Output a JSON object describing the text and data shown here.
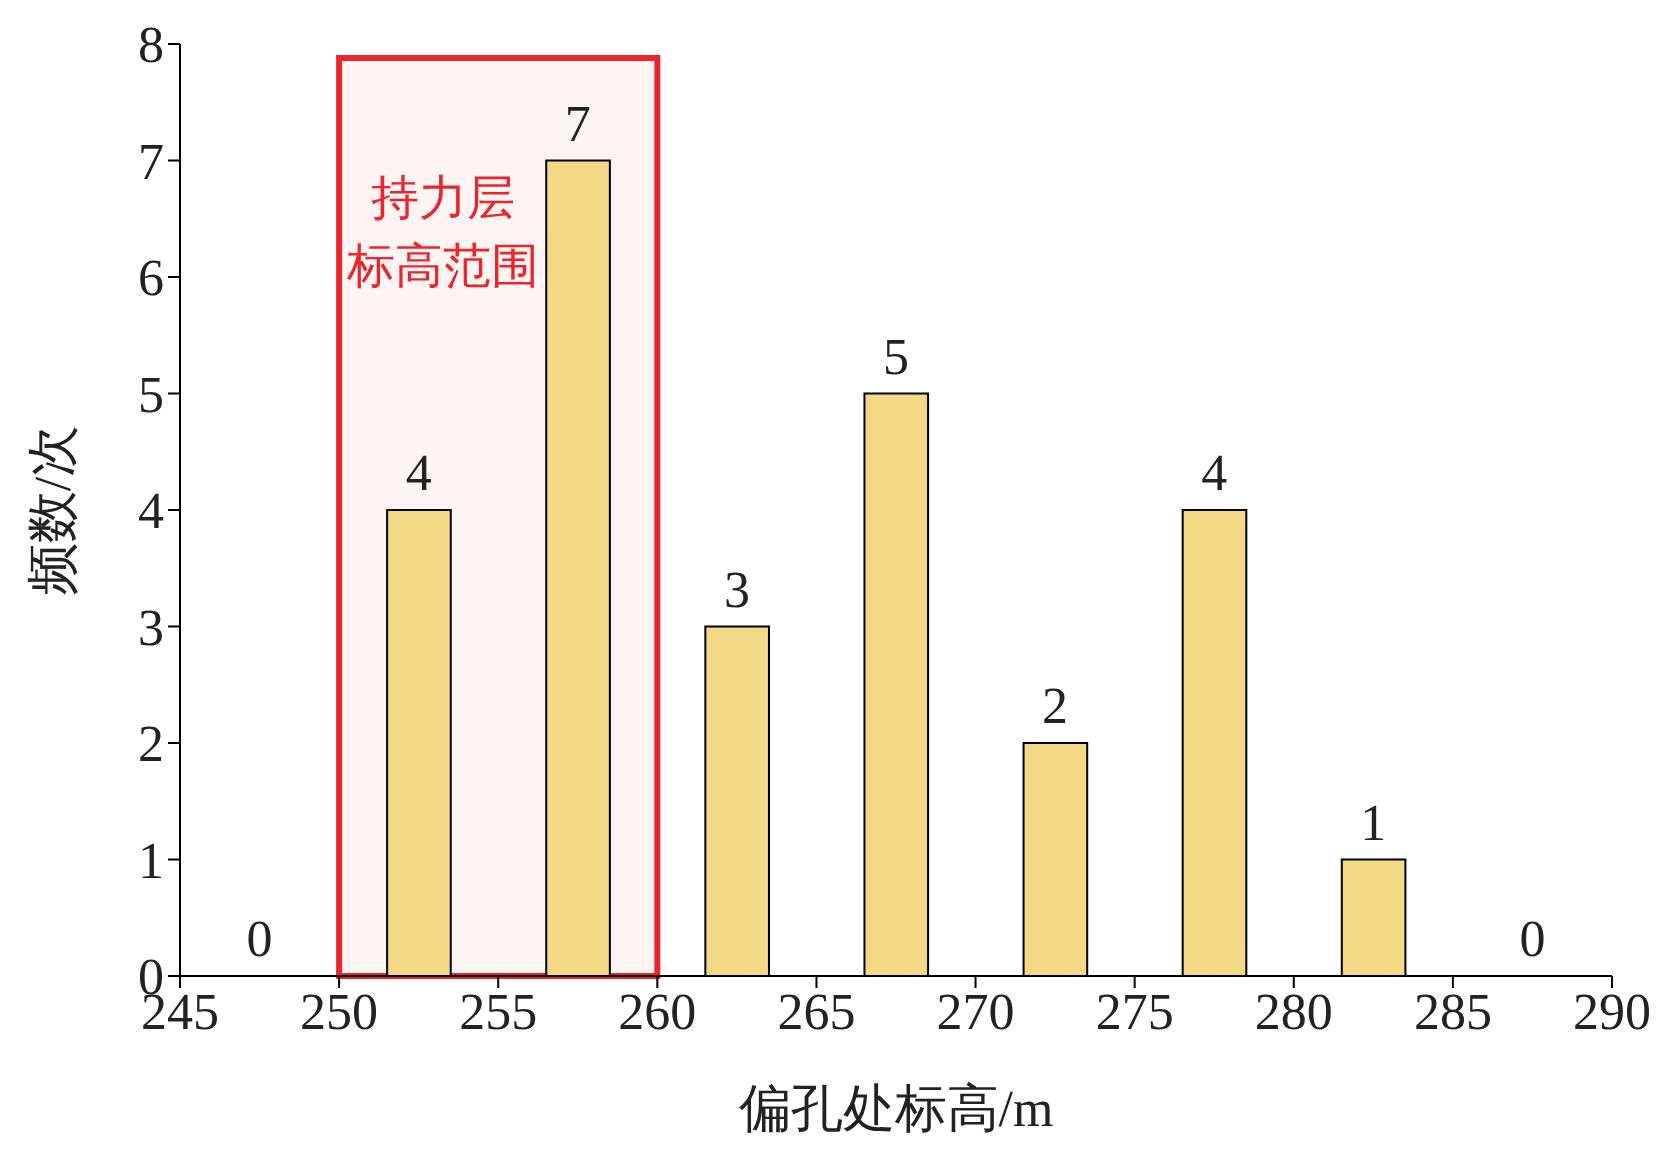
{
  "chart_data": {
    "type": "bar",
    "xlabel": "偏孔处标高/m",
    "ylabel": "频数/次",
    "x": [
      247.5,
      252.5,
      257.5,
      262.5,
      267.5,
      272.5,
      277.5,
      282.5,
      287.5
    ],
    "values": [
      0,
      4,
      7,
      3,
      5,
      2,
      4,
      1,
      0
    ],
    "color": "#f3d886",
    "xlim": [
      245,
      290
    ],
    "xticks": [
      245,
      250,
      255,
      260,
      265,
      270,
      275,
      280,
      285,
      290
    ],
    "ylim": [
      0,
      8
    ],
    "yticks": [
      0,
      1,
      2,
      3,
      4,
      5,
      6,
      7,
      8
    ],
    "data_labels": true,
    "grid": false,
    "bands": [
      {
        "axis": "x",
        "from": 250,
        "to": 260,
        "label": "持力层标高范围",
        "color": "#e8262b"
      }
    ]
  }
}
